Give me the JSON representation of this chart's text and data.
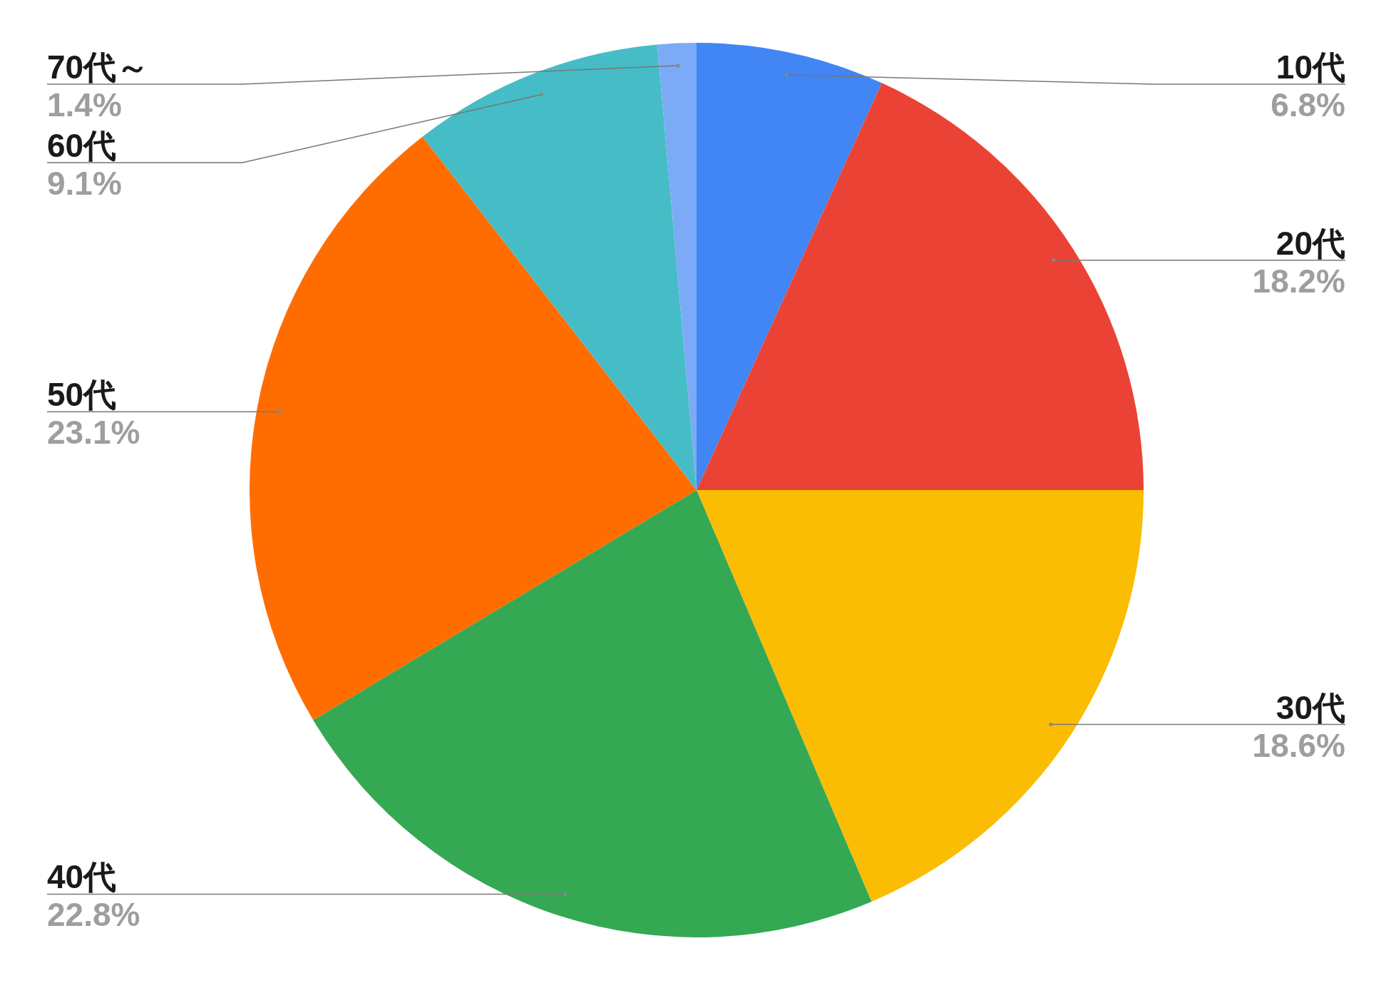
{
  "chart_data": {
    "type": "pie",
    "categories": [
      "10代",
      "20代",
      "30代",
      "40代",
      "50代",
      "60代",
      "70代～"
    ],
    "values": [
      6.8,
      18.2,
      18.6,
      22.8,
      23.1,
      9.1,
      1.4
    ],
    "colors": [
      "#4285f4",
      "#ea4335",
      "#fbbc04",
      "#34a853",
      "#ff6d01",
      "#46bdc6",
      "#7baaf7"
    ],
    "value_labels": [
      "6.8%",
      "18.2%",
      "18.6%",
      "22.8%",
      "23.1%",
      "9.1%",
      "1.4%"
    ]
  }
}
